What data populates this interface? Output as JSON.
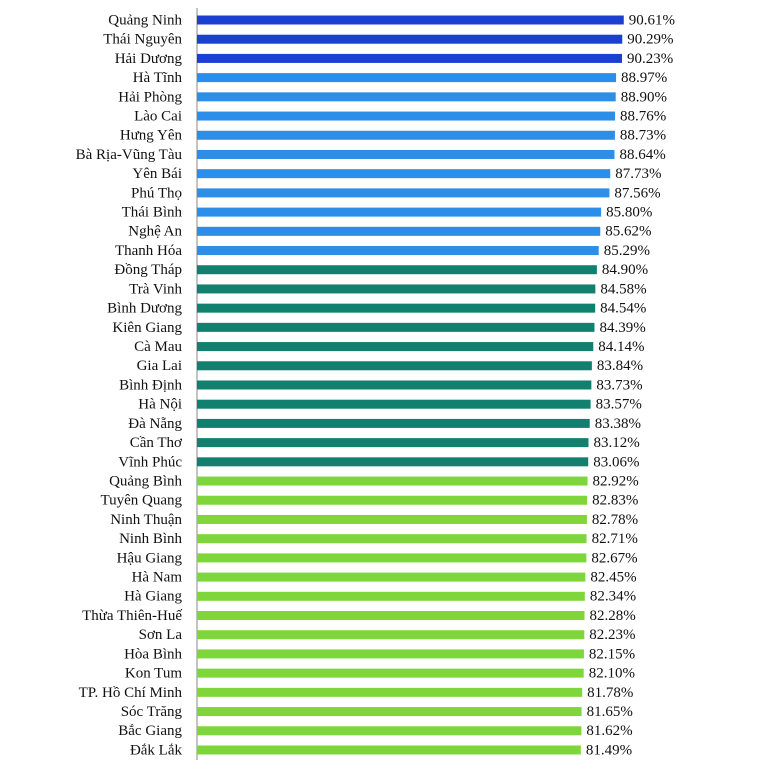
{
  "chart_data": {
    "type": "hbar",
    "categories": [
      "Quảng Ninh",
      "Thái Nguyên",
      "Hải Dương",
      "Hà Tĩnh",
      "Hải Phòng",
      "Lào Cai",
      "Hưng Yên",
      "Bà Rịa-Vũng Tàu",
      "Yên Bái",
      "Phú Thọ",
      "Thái Bình",
      "Nghệ An",
      "Thanh Hóa",
      "Đồng Tháp",
      "Trà Vinh",
      "Bình Dương",
      "Kiên Giang",
      "Cà Mau",
      "Gia Lai",
      "Bình Định",
      "Hà Nội",
      "Đà Nẵng",
      "Cần Thơ",
      "Vĩnh Phúc",
      "Quảng Bình",
      "Tuyên Quang",
      "Ninh Thuận",
      "Ninh Bình",
      "Hậu Giang",
      "Hà Nam",
      "Hà Giang",
      "Thừa Thiên-Huế",
      "Sơn La",
      "Hòa Bình",
      "Kon Tum",
      "TP. Hồ Chí Minh",
      "Sóc Trăng",
      "Bắc Giang",
      "Đắk Lắk"
    ],
    "values": [
      90.61,
      90.29,
      90.23,
      88.97,
      88.9,
      88.76,
      88.73,
      88.64,
      87.73,
      87.56,
      85.8,
      85.62,
      85.29,
      84.9,
      84.58,
      84.54,
      84.39,
      84.14,
      83.84,
      83.73,
      83.57,
      83.38,
      83.12,
      83.06,
      82.92,
      82.83,
      82.78,
      82.71,
      82.67,
      82.45,
      82.34,
      82.28,
      82.23,
      82.15,
      82.1,
      81.78,
      81.65,
      81.62,
      81.49
    ],
    "value_labels": [
      "90.61%",
      "90.29%",
      "90.23%",
      "88.97%",
      "88.90%",
      "88.76%",
      "88.73%",
      "88.64%",
      "87.73%",
      "87.56%",
      "85.80%",
      "85.62%",
      "85.29%",
      "84.90%",
      "84.58%",
      "84.54%",
      "84.39%",
      "84.14%",
      "83.84%",
      "83.73%",
      "83.57%",
      "83.38%",
      "83.12%",
      "83.06%",
      "82.92%",
      "82.83%",
      "82.78%",
      "82.71%",
      "82.67%",
      "82.45%",
      "82.34%",
      "82.28%",
      "82.23%",
      "82.15%",
      "82.10%",
      "81.78%",
      "81.65%",
      "81.62%",
      "81.49%"
    ],
    "colors": [
      "#1b3fd0",
      "#1b3fd0",
      "#1b3fd0",
      "#2b8ee8",
      "#2b8ee8",
      "#2b8ee8",
      "#2b8ee8",
      "#2b8ee8",
      "#2b8ee8",
      "#2b8ee8",
      "#2b8ee8",
      "#2b8ee8",
      "#2b8ee8",
      "#11806e",
      "#11806e",
      "#11806e",
      "#11806e",
      "#11806e",
      "#11806e",
      "#11806e",
      "#11806e",
      "#11806e",
      "#11806e",
      "#11806e",
      "#7ed63a",
      "#7ed63a",
      "#7ed63a",
      "#7ed63a",
      "#7ed63a",
      "#7ed63a",
      "#7ed63a",
      "#7ed63a",
      "#7ed63a",
      "#7ed63a",
      "#7ed63a",
      "#7ed63a",
      "#7ed63a",
      "#7ed63a",
      "#7ed63a"
    ],
    "xlim": [
      0,
      100
    ]
  }
}
